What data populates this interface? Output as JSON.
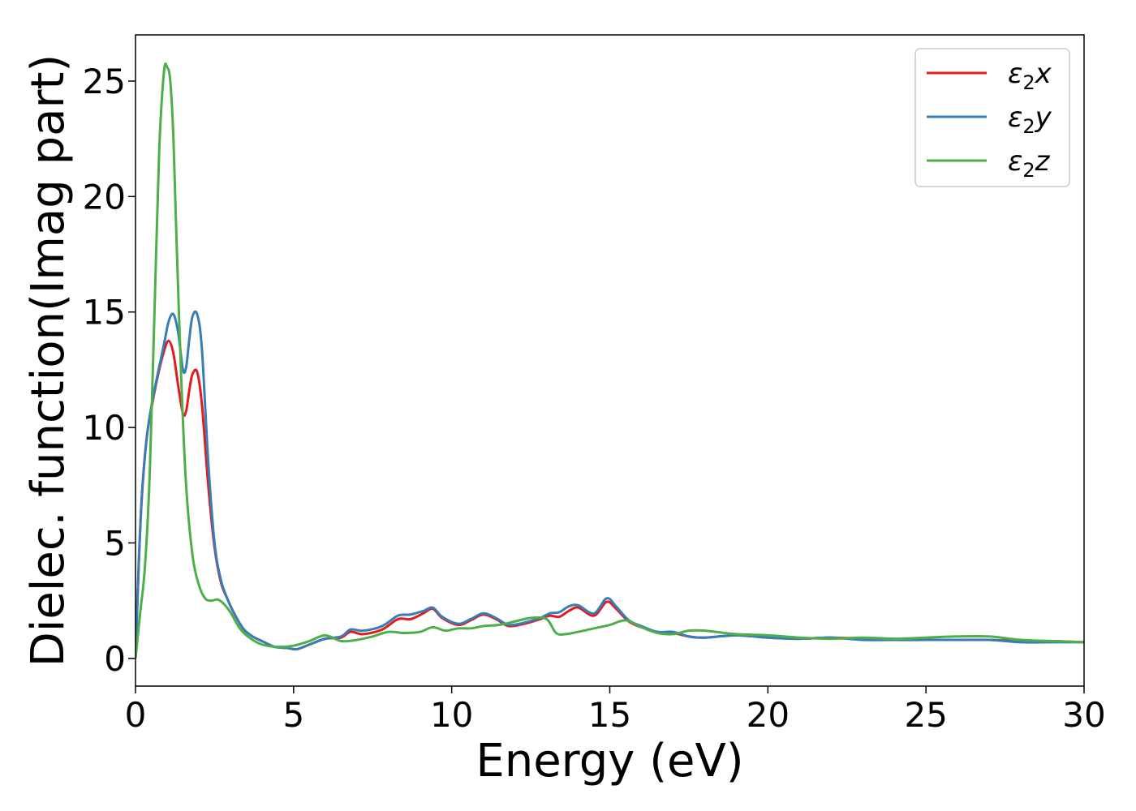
{
  "chart_data": {
    "type": "line",
    "title": "",
    "xlabel": "Energy (eV)",
    "ylabel": "Dielec. function(Imag part)",
    "xlim": [
      0,
      30
    ],
    "ylim": [
      -1.2,
      27
    ],
    "xticks": [
      0,
      5,
      10,
      15,
      20,
      25,
      30
    ],
    "yticks": [
      0,
      5,
      10,
      15,
      20,
      25
    ],
    "grid": false,
    "legend_position": "top-right",
    "series": [
      {
        "name": "ε2x",
        "legend_main": "ε",
        "legend_sub": "2",
        "legend_tail": "x",
        "color": "#e41a1c",
        "x": [
          0,
          0.1,
          0.2,
          0.35,
          0.5,
          0.7,
          0.9,
          1.05,
          1.2,
          1.35,
          1.5,
          1.6,
          1.7,
          1.8,
          1.95,
          2.1,
          2.3,
          2.5,
          2.7,
          2.9,
          3.1,
          3.4,
          3.7,
          4.0,
          4.4,
          4.8,
          5.1,
          5.5,
          6.0,
          6.5,
          6.8,
          7.2,
          7.8,
          8.3,
          8.7,
          9.1,
          9.4,
          9.7,
          10.2,
          10.6,
          11.0,
          11.4,
          11.8,
          12.3,
          12.8,
          13.1,
          13.4,
          13.7,
          14.0,
          14.5,
          14.9,
          15.2,
          15.6,
          16.0,
          16.5,
          17.0,
          17.5,
          18.0,
          19.0,
          20.0,
          21.0,
          22.0,
          23.0,
          24.0,
          25.0,
          26.0,
          27.0,
          28.0,
          29.0,
          30.0
        ],
        "values": [
          0,
          4.0,
          7.0,
          9.5,
          10.8,
          12.2,
          13.3,
          13.75,
          13.2,
          11.8,
          10.6,
          10.7,
          11.6,
          12.3,
          12.4,
          11.0,
          7.5,
          4.8,
          3.3,
          2.6,
          2.0,
          1.3,
          0.95,
          0.75,
          0.5,
          0.45,
          0.4,
          0.6,
          0.85,
          0.9,
          1.15,
          1.05,
          1.25,
          1.7,
          1.7,
          1.95,
          2.15,
          1.75,
          1.45,
          1.65,
          1.9,
          1.7,
          1.4,
          1.5,
          1.7,
          1.85,
          1.8,
          2.05,
          2.2,
          1.85,
          2.45,
          2.15,
          1.6,
          1.35,
          1.15,
          1.1,
          0.95,
          0.9,
          1.0,
          0.9,
          0.85,
          0.9,
          0.85,
          0.8,
          0.8,
          0.8,
          0.8,
          0.75,
          0.75,
          0.7
        ]
      },
      {
        "name": "ε2y",
        "legend_main": "ε",
        "legend_sub": "2",
        "legend_tail": "y",
        "color": "#377eb8",
        "x": [
          0,
          0.1,
          0.2,
          0.35,
          0.5,
          0.7,
          0.9,
          1.05,
          1.2,
          1.35,
          1.5,
          1.6,
          1.7,
          1.8,
          1.95,
          2.1,
          2.3,
          2.5,
          2.7,
          2.9,
          3.1,
          3.4,
          3.7,
          4.0,
          4.4,
          4.8,
          5.1,
          5.5,
          6.0,
          6.5,
          6.8,
          7.2,
          7.8,
          8.3,
          8.7,
          9.1,
          9.4,
          9.7,
          10.2,
          10.6,
          11.0,
          11.4,
          11.8,
          12.3,
          12.8,
          13.1,
          13.4,
          13.7,
          14.0,
          14.5,
          14.9,
          15.2,
          15.6,
          16.0,
          16.5,
          17.0,
          17.5,
          18.0,
          19.0,
          20.0,
          21.0,
          22.0,
          23.0,
          24.0,
          25.0,
          26.0,
          27.0,
          28.0,
          29.0,
          30.0
        ],
        "values": [
          0,
          4.0,
          7.0,
          9.5,
          10.9,
          12.3,
          13.6,
          14.6,
          14.9,
          14.1,
          12.5,
          12.6,
          13.8,
          14.8,
          14.9,
          13.4,
          8.5,
          5.0,
          3.4,
          2.6,
          2.0,
          1.3,
          0.95,
          0.75,
          0.5,
          0.45,
          0.4,
          0.6,
          0.85,
          0.95,
          1.25,
          1.2,
          1.4,
          1.85,
          1.9,
          2.05,
          2.2,
          1.8,
          1.5,
          1.7,
          1.95,
          1.75,
          1.45,
          1.55,
          1.75,
          1.95,
          2.0,
          2.25,
          2.3,
          1.95,
          2.6,
          2.25,
          1.65,
          1.4,
          1.15,
          1.15,
          0.95,
          0.9,
          1.0,
          0.9,
          0.85,
          0.9,
          0.8,
          0.8,
          0.8,
          0.8,
          0.8,
          0.7,
          0.7,
          0.7
        ]
      },
      {
        "name": "ε2z",
        "legend_main": "ε",
        "legend_sub": "2",
        "legend_tail": "z",
        "color": "#4daf4a",
        "x": [
          0,
          0.15,
          0.3,
          0.45,
          0.6,
          0.75,
          0.9,
          1.0,
          1.1,
          1.2,
          1.3,
          1.45,
          1.6,
          1.8,
          2.0,
          2.2,
          2.4,
          2.6,
          2.8,
          3.0,
          3.3,
          3.6,
          4.0,
          4.5,
          5.0,
          5.5,
          6.0,
          6.5,
          7.0,
          7.5,
          8.0,
          8.5,
          9.0,
          9.4,
          9.8,
          10.2,
          10.6,
          11.0,
          11.5,
          12.0,
          12.5,
          13.0,
          13.3,
          13.6,
          14.0,
          14.5,
          15.0,
          15.5,
          16.0,
          16.5,
          17.0,
          17.5,
          18.0,
          19.0,
          20.0,
          21.0,
          22.0,
          23.0,
          24.0,
          25.0,
          26.0,
          27.0,
          28.0,
          29.0,
          30.0
        ],
        "values": [
          0,
          2.0,
          4.0,
          8.0,
          15.0,
          22.0,
          25.4,
          25.6,
          25.0,
          22.5,
          18.0,
          12.0,
          7.5,
          4.5,
          3.2,
          2.6,
          2.5,
          2.55,
          2.35,
          2.0,
          1.3,
          0.9,
          0.6,
          0.5,
          0.55,
          0.75,
          1.0,
          0.75,
          0.8,
          0.95,
          1.15,
          1.1,
          1.15,
          1.35,
          1.2,
          1.3,
          1.3,
          1.4,
          1.45,
          1.6,
          1.75,
          1.7,
          1.1,
          1.05,
          1.15,
          1.3,
          1.45,
          1.65,
          1.35,
          1.1,
          1.05,
          1.2,
          1.2,
          1.05,
          1.0,
          0.9,
          0.85,
          0.9,
          0.85,
          0.9,
          0.95,
          0.95,
          0.8,
          0.75,
          0.7
        ]
      }
    ]
  }
}
